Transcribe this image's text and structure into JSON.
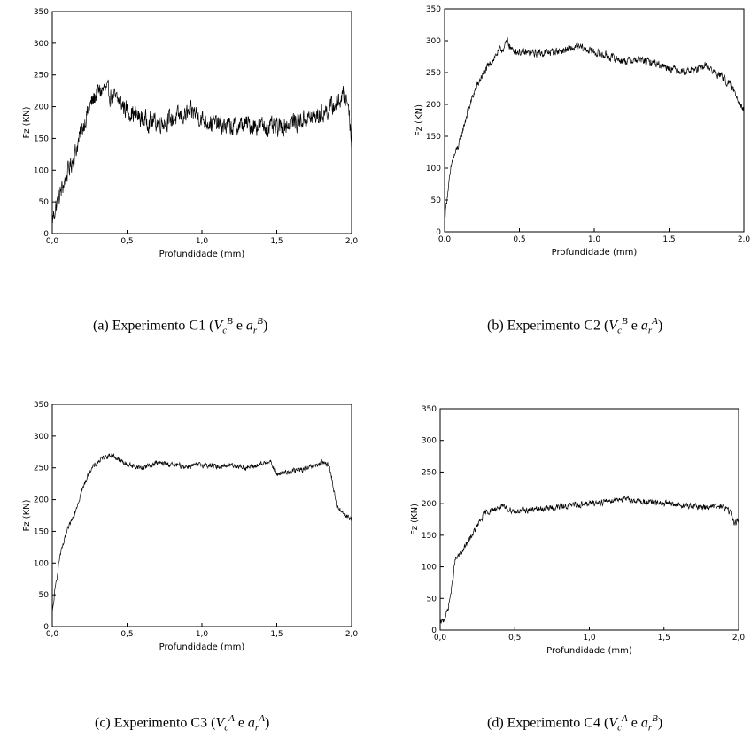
{
  "chart_data": [
    {
      "type": "line",
      "id": "c1",
      "xlabel": "Profundidade (mm)",
      "ylabel": "Fz (KN)",
      "xlim": [
        0,
        2.0
      ],
      "ylim": [
        0,
        350
      ],
      "xticks": [
        "0,0",
        "0,5",
        "1,0",
        "1,5",
        "2,0"
      ],
      "yticks": [
        "0",
        "50",
        "100",
        "150",
        "200",
        "250",
        "300",
        "350"
      ],
      "grid": false,
      "noise": 22,
      "x": [
        0.0,
        0.02,
        0.05,
        0.1,
        0.15,
        0.2,
        0.25,
        0.3,
        0.35,
        0.4,
        0.45,
        0.5,
        0.6,
        0.7,
        0.8,
        0.9,
        0.95,
        1.0,
        1.1,
        1.2,
        1.3,
        1.4,
        1.5,
        1.6,
        1.7,
        1.8,
        1.9,
        1.95,
        1.98,
        2.0
      ],
      "y": [
        20,
        40,
        60,
        95,
        125,
        165,
        200,
        222,
        228,
        215,
        208,
        195,
        180,
        175,
        180,
        188,
        192,
        180,
        172,
        168,
        172,
        170,
        165,
        175,
        180,
        188,
        205,
        218,
        205,
        140
      ]
    },
    {
      "type": "line",
      "id": "c2",
      "xlabel": "Profundidade (mm)",
      "ylabel": "Fz (KN)",
      "xlim": [
        0,
        2.0
      ],
      "ylim": [
        0,
        350
      ],
      "xticks": [
        "0,0",
        "0,5",
        "1,0",
        "1,5",
        "2,0"
      ],
      "yticks": [
        "0",
        "50",
        "100",
        "150",
        "200",
        "250",
        "300",
        "350"
      ],
      "grid": false,
      "noise": 9,
      "x": [
        0.0,
        0.02,
        0.05,
        0.1,
        0.15,
        0.2,
        0.25,
        0.3,
        0.35,
        0.4,
        0.42,
        0.45,
        0.5,
        0.6,
        0.7,
        0.8,
        0.9,
        1.0,
        1.1,
        1.2,
        1.3,
        1.4,
        1.5,
        1.6,
        1.7,
        1.75,
        1.8,
        1.85,
        1.9,
        1.95,
        2.0
      ],
      "y": [
        20,
        60,
        110,
        140,
        185,
        220,
        245,
        262,
        280,
        290,
        300,
        285,
        282,
        280,
        282,
        285,
        290,
        282,
        275,
        268,
        270,
        265,
        258,
        252,
        255,
        262,
        250,
        245,
        232,
        215,
        190
      ]
    },
    {
      "type": "line",
      "id": "c3",
      "xlabel": "Profundidade (mm)",
      "ylabel": "Fz (KN)",
      "xlim": [
        0,
        2.0
      ],
      "ylim": [
        0,
        350
      ],
      "xticks": [
        "0,0",
        "0,5",
        "1,0",
        "1,5",
        "2,0"
      ],
      "yticks": [
        "0",
        "50",
        "100",
        "150",
        "200",
        "250",
        "300",
        "350"
      ],
      "grid": false,
      "noise": 6,
      "x": [
        0.0,
        0.02,
        0.05,
        0.1,
        0.15,
        0.2,
        0.25,
        0.3,
        0.35,
        0.4,
        0.45,
        0.5,
        0.6,
        0.7,
        0.8,
        0.9,
        1.0,
        1.1,
        1.2,
        1.3,
        1.4,
        1.45,
        1.5,
        1.6,
        1.7,
        1.8,
        1.85,
        1.9,
        1.95,
        2.0
      ],
      "y": [
        20,
        60,
        110,
        150,
        180,
        215,
        245,
        258,
        268,
        270,
        262,
        255,
        250,
        258,
        255,
        252,
        255,
        252,
        255,
        250,
        255,
        262,
        240,
        245,
        248,
        258,
        255,
        190,
        178,
        168
      ]
    },
    {
      "type": "line",
      "id": "c4",
      "xlabel": "Profundidade (mm)",
      "ylabel": "Fz (KN)",
      "xlim": [
        0,
        2.0
      ],
      "ylim": [
        0,
        350
      ],
      "xticks": [
        "0,0",
        "0,5",
        "1,0",
        "1,5",
        "2,0"
      ],
      "yticks": [
        "0",
        "50",
        "100",
        "150",
        "200",
        "250",
        "300",
        "350"
      ],
      "grid": false,
      "noise": 7,
      "x": [
        0.0,
        0.02,
        0.05,
        0.08,
        0.1,
        0.15,
        0.2,
        0.25,
        0.3,
        0.35,
        0.4,
        0.45,
        0.5,
        0.6,
        0.7,
        0.8,
        0.9,
        1.0,
        1.1,
        1.2,
        1.3,
        1.4,
        1.5,
        1.6,
        1.7,
        1.8,
        1.9,
        1.95,
        1.97,
        2.0
      ],
      "y": [
        10,
        15,
        30,
        70,
        110,
        125,
        145,
        165,
        185,
        190,
        195,
        192,
        188,
        190,
        192,
        195,
        198,
        200,
        203,
        208,
        205,
        202,
        200,
        198,
        195,
        195,
        195,
        185,
        168,
        175
      ]
    }
  ],
  "captions": [
    {
      "label": "(a) Experimento C1 (",
      "v": "V",
      "v_sub": "c",
      "v_sup": "B",
      "conj": " e ",
      "a": "a",
      "a_sub": "r",
      "a_sup": "B",
      "close": ")"
    },
    {
      "label": "(b) Experimento C2 (",
      "v": "V",
      "v_sub": "c",
      "v_sup": "B",
      "conj": " e ",
      "a": "a",
      "a_sub": "r",
      "a_sup": "A",
      "close": ")"
    },
    {
      "label": "(c) Experimento C3 (",
      "v": "V",
      "v_sub": "c",
      "v_sup": "A",
      "conj": " e ",
      "a": "a",
      "a_sub": "r",
      "a_sup": "A",
      "close": ")"
    },
    {
      "label": "(d) Experimento C4 (",
      "v": "V",
      "v_sub": "c",
      "v_sup": "A",
      "conj": " e ",
      "a": "a",
      "a_sub": "r",
      "a_sup": "B",
      "close": ")"
    }
  ]
}
